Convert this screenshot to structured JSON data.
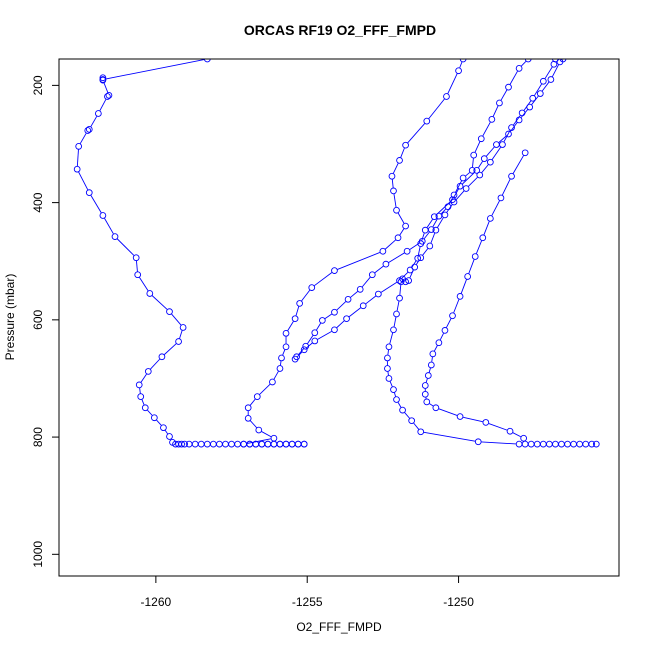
{
  "chart_data": {
    "type": "line",
    "title": "ORCAS RF19 O2_FFF_FMPD",
    "xlabel": "O2_FFF_FMPD",
    "ylabel": "Pressure (mbar)",
    "xlim": [
      -1263.2,
      -1244.7
    ],
    "ylim": [
      1037,
      155
    ],
    "y_reversed": true,
    "xticks": [
      -1260,
      -1255,
      -1250
    ],
    "yticks": [
      200,
      400,
      600,
      800,
      1000
    ],
    "grid": false,
    "legend": "none",
    "series_style": {
      "color": "#0000ff",
      "marker": "open-circle",
      "line": true
    },
    "series": [
      {
        "points": [
          [
            -1258.3,
            155
          ],
          [
            -1261.75,
            190
          ],
          [
            -1261.75,
            187
          ],
          [
            -1261.75,
            191
          ],
          [
            -1261.55,
            217
          ],
          [
            -1261.6,
            219
          ],
          [
            -1261.9,
            248
          ],
          [
            -1262.2,
            275
          ],
          [
            -1262.25,
            277
          ],
          [
            -1262.55,
            304
          ],
          [
            -1262.6,
            343
          ],
          [
            -1262.2,
            383
          ],
          [
            -1261.75,
            422
          ],
          [
            -1261.35,
            458
          ],
          [
            -1260.65,
            494
          ],
          [
            -1260.6,
            523
          ],
          [
            -1260.2,
            555
          ],
          [
            -1259.55,
            586
          ],
          [
            -1259.1,
            613
          ],
          [
            -1259.25,
            637
          ],
          [
            -1259.8,
            663
          ],
          [
            -1260.25,
            688
          ],
          [
            -1260.55,
            711
          ],
          [
            -1260.5,
            731
          ],
          [
            -1260.35,
            750
          ],
          [
            -1260.05,
            767
          ],
          [
            -1259.75,
            784
          ],
          [
            -1259.55,
            799
          ],
          [
            -1259.45,
            809
          ],
          [
            -1259.35,
            812
          ],
          [
            -1259.25,
            812
          ],
          [
            -1259.15,
            812
          ],
          [
            -1259.05,
            812
          ],
          [
            -1258.9,
            812
          ],
          [
            -1258.7,
            812
          ],
          [
            -1258.5,
            812
          ],
          [
            -1258.3,
            812
          ],
          [
            -1258.1,
            812
          ],
          [
            -1257.9,
            812
          ],
          [
            -1257.7,
            812
          ],
          [
            -1257.5,
            812
          ],
          [
            -1257.3,
            812
          ],
          [
            -1257.1,
            812
          ],
          [
            -1256.9,
            812
          ],
          [
            -1256.7,
            812
          ],
          [
            -1256.5,
            812
          ],
          [
            -1256.3,
            812
          ],
          [
            -1256.1,
            812
          ],
          [
            -1255.9,
            812
          ],
          [
            -1255.7,
            812
          ],
          [
            -1255.5,
            812
          ],
          [
            -1255.3,
            812
          ],
          [
            -1255.1,
            812
          ]
        ]
      },
      {
        "points": [
          [
            -1255.1,
            812
          ],
          [
            -1255.3,
            812
          ],
          [
            -1255.5,
            812
          ],
          [
            -1255.7,
            812
          ],
          [
            -1255.9,
            812
          ],
          [
            -1256.1,
            812
          ],
          [
            -1256.3,
            812
          ],
          [
            -1256.5,
            812
          ],
          [
            -1256.7,
            812
          ],
          [
            -1256.9,
            812
          ],
          [
            -1257.1,
            812
          ],
          [
            -1256.1,
            802
          ],
          [
            -1256.6,
            788
          ],
          [
            -1256.95,
            768
          ],
          [
            -1256.95,
            750
          ],
          [
            -1256.65,
            731
          ],
          [
            -1256.15,
            706
          ],
          [
            -1255.9,
            683
          ],
          [
            -1255.85,
            665
          ],
          [
            -1255.7,
            646
          ],
          [
            -1255.7,
            623
          ],
          [
            -1255.4,
            598
          ],
          [
            -1255.25,
            572
          ],
          [
            -1254.85,
            545
          ],
          [
            -1254.1,
            516
          ],
          [
            -1252.5,
            483
          ],
          [
            -1252.0,
            460
          ],
          [
            -1251.75,
            440
          ],
          [
            -1252.05,
            413
          ],
          [
            -1252.15,
            380
          ],
          [
            -1252.2,
            355
          ],
          [
            -1251.95,
            328
          ],
          [
            -1251.75,
            302
          ],
          [
            -1251.05,
            261
          ],
          [
            -1250.4,
            219
          ],
          [
            -1250.0,
            175
          ],
          [
            -1249.85,
            155
          ]
        ]
      },
      {
        "points": [
          [
            -1255.35,
            663
          ],
          [
            -1255.05,
            645
          ],
          [
            -1254.75,
            622
          ],
          [
            -1254.5,
            601
          ],
          [
            -1254.1,
            587
          ],
          [
            -1253.65,
            565
          ],
          [
            -1253.25,
            548
          ],
          [
            -1252.85,
            523
          ],
          [
            -1252.4,
            505
          ],
          [
            -1251.7,
            483
          ],
          [
            -1251.2,
            466
          ],
          [
            -1250.9,
            446
          ],
          [
            -1250.65,
            423
          ],
          [
            -1250.35,
            407
          ],
          [
            -1250.15,
            387
          ],
          [
            -1249.85,
            358
          ],
          [
            -1249.55,
            345
          ],
          [
            -1249.5,
            319
          ],
          [
            -1249.25,
            291
          ],
          [
            -1248.9,
            258
          ],
          [
            -1248.65,
            230
          ],
          [
            -1248.35,
            203
          ],
          [
            -1248.0,
            171
          ],
          [
            -1247.7,
            155
          ]
        ]
      },
      {
        "points": [
          [
            -1255.4,
            667
          ],
          [
            -1255.1,
            651
          ],
          [
            -1254.75,
            636
          ],
          [
            -1254.1,
            617
          ],
          [
            -1253.7,
            598
          ],
          [
            -1253.15,
            576
          ],
          [
            -1252.65,
            556
          ],
          [
            -1251.95,
            533
          ],
          [
            -1251.6,
            515
          ],
          [
            -1251.35,
            495
          ],
          [
            -1251.25,
            470
          ],
          [
            -1251.1,
            447
          ],
          [
            -1250.8,
            424
          ],
          [
            -1250.2,
            395
          ],
          [
            -1249.95,
            372
          ],
          [
            -1249.4,
            345
          ],
          [
            -1249.15,
            325
          ],
          [
            -1248.75,
            301
          ],
          [
            -1248.35,
            283
          ],
          [
            -1248.0,
            259
          ],
          [
            -1247.65,
            237
          ],
          [
            -1247.3,
            214
          ],
          [
            -1246.95,
            190
          ],
          [
            -1246.65,
            160
          ],
          [
            -1246.55,
            155
          ]
        ]
      },
      {
        "points": [
          [
            -1251.85,
            530
          ],
          [
            -1251.75,
            535
          ],
          [
            -1251.65,
            533
          ],
          [
            -1251.45,
            510
          ],
          [
            -1251.25,
            494
          ],
          [
            -1250.95,
            474
          ],
          [
            -1250.75,
            447
          ],
          [
            -1250.45,
            421
          ],
          [
            -1250.15,
            399
          ],
          [
            -1249.75,
            376
          ],
          [
            -1249.3,
            353
          ],
          [
            -1248.95,
            331
          ],
          [
            -1248.55,
            301
          ],
          [
            -1248.25,
            272
          ],
          [
            -1247.9,
            247
          ],
          [
            -1247.55,
            222
          ],
          [
            -1247.2,
            193
          ],
          [
            -1246.85,
            164
          ],
          [
            -1246.8,
            155
          ]
        ]
      },
      {
        "points": [
          [
            -1251.9,
            535
          ],
          [
            -1251.95,
            563
          ],
          [
            -1252.05,
            590
          ],
          [
            -1252.15,
            617
          ],
          [
            -1252.3,
            646
          ],
          [
            -1252.35,
            665
          ],
          [
            -1252.35,
            683
          ],
          [
            -1252.3,
            700
          ],
          [
            -1252.15,
            719
          ],
          [
            -1252.05,
            736
          ],
          [
            -1251.85,
            754
          ],
          [
            -1251.55,
            772
          ],
          [
            -1251.25,
            791
          ],
          [
            -1249.35,
            808
          ],
          [
            -1248.0,
            812
          ],
          [
            -1247.8,
            812
          ],
          [
            -1247.6,
            812
          ],
          [
            -1247.4,
            812
          ],
          [
            -1247.2,
            812
          ],
          [
            -1247.0,
            812
          ],
          [
            -1246.8,
            812
          ],
          [
            -1246.6,
            812
          ],
          [
            -1246.4,
            812
          ],
          [
            -1246.2,
            812
          ],
          [
            -1246.0,
            812
          ],
          [
            -1245.8,
            812
          ],
          [
            -1245.6,
            812
          ],
          [
            -1245.45,
            812
          ]
        ]
      },
      {
        "points": [
          [
            -1247.85,
            802
          ],
          [
            -1248.3,
            790
          ],
          [
            -1249.1,
            775
          ],
          [
            -1249.95,
            765
          ],
          [
            -1250.75,
            750
          ],
          [
            -1251.05,
            740
          ],
          [
            -1251.1,
            727
          ],
          [
            -1251.1,
            712
          ],
          [
            -1251.0,
            695
          ],
          [
            -1250.9,
            677
          ],
          [
            -1250.85,
            658
          ],
          [
            -1250.65,
            639
          ],
          [
            -1250.45,
            618
          ],
          [
            -1250.2,
            593
          ],
          [
            -1249.95,
            560
          ],
          [
            -1249.7,
            526
          ],
          [
            -1249.45,
            492
          ],
          [
            -1249.2,
            460
          ],
          [
            -1248.95,
            427
          ],
          [
            -1248.6,
            392
          ],
          [
            -1248.25,
            355
          ],
          [
            -1247.8,
            315
          ]
        ]
      }
    ]
  }
}
